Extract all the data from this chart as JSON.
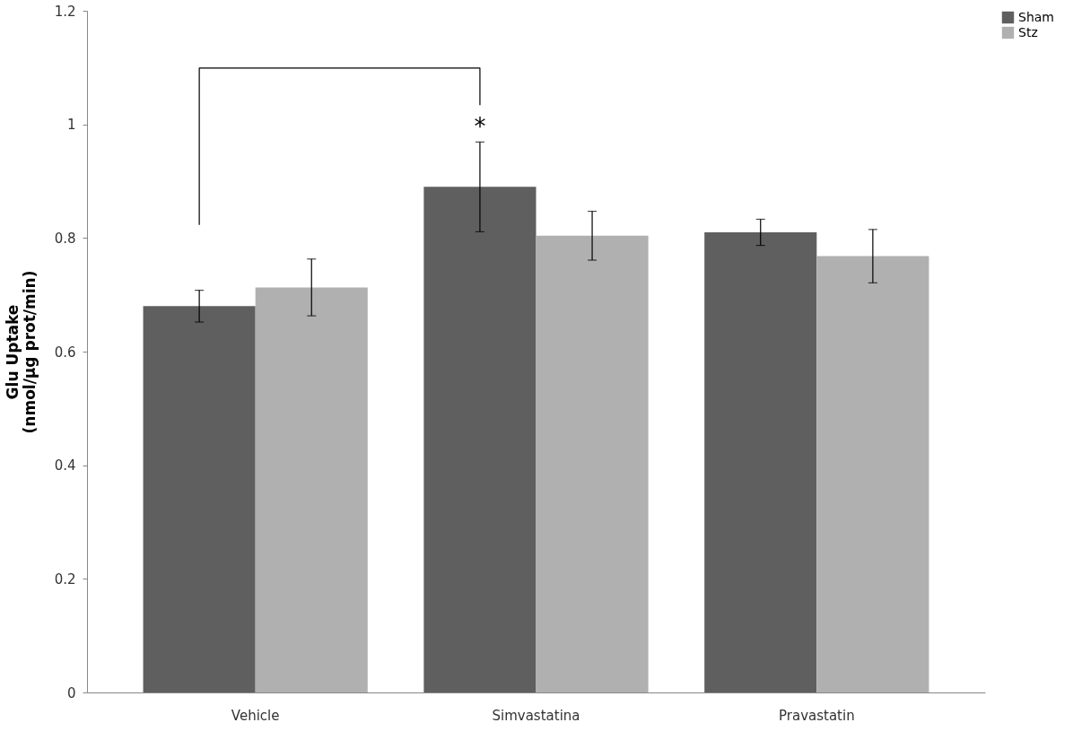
{
  "chart_data": {
    "type": "bar",
    "ylabel": "Glu Uptake\n(nmol/μg prot/min)",
    "categories": [
      "Vehicle",
      "Simvastatina",
      "Pravastatin"
    ],
    "series": [
      {
        "name": "Sham",
        "color": "#5f5f5f",
        "values": [
          0.68,
          0.89,
          0.81
        ],
        "errors": [
          0.028,
          0.079,
          0.023
        ]
      },
      {
        "name": "Stz",
        "color": "#b0b0b0",
        "values": [
          0.713,
          0.804,
          0.768
        ],
        "errors": [
          0.05,
          0.043,
          0.047
        ]
      }
    ],
    "ylim": [
      0,
      1.2
    ],
    "yticks": [
      0,
      0.2,
      0.4,
      0.6,
      0.8,
      1,
      1.2
    ],
    "grid": false,
    "legend": "right",
    "annotations": [
      "*"
    ]
  }
}
